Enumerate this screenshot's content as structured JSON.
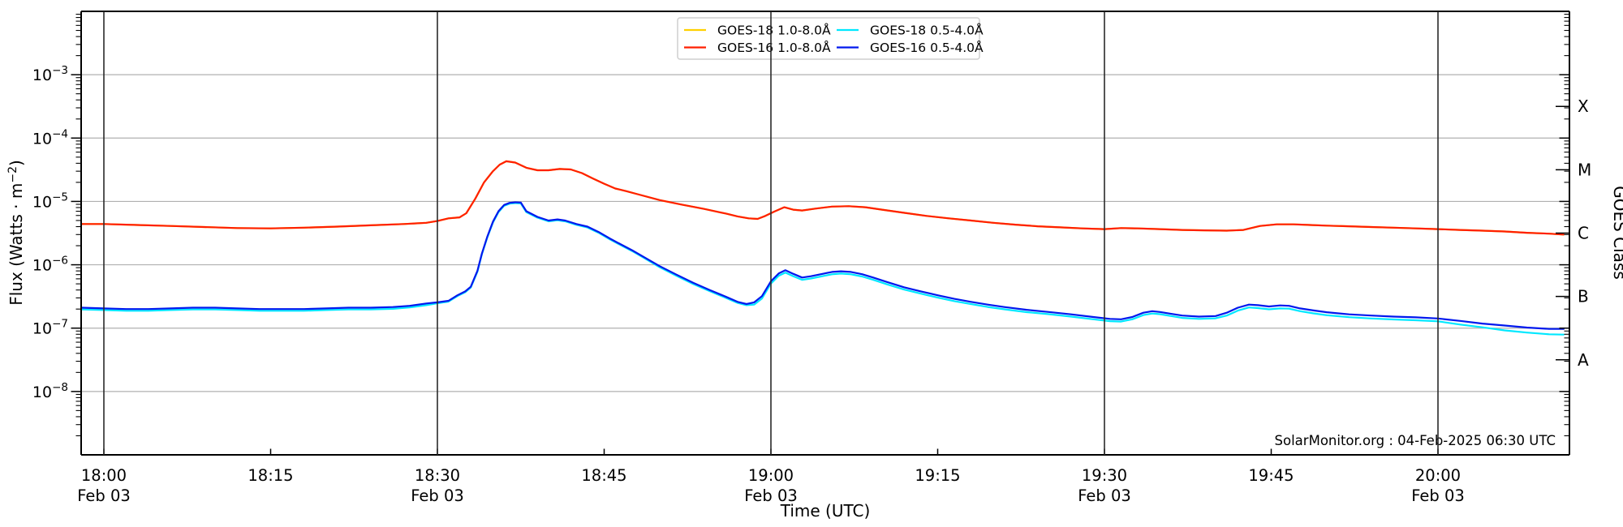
{
  "figure": {
    "annotation": "SolarMonitor.org : 04-Feb-2025 06:30 UTC",
    "xlabel": "Time (UTC)",
    "ylabel_prefix": "Flux (Watts · m",
    "ylabel_sup": "−2",
    "ylabel_suffix": ")",
    "right_axis_label": "GOES Class",
    "colors": {
      "background": "#ffffff",
      "grid_horizontal": "#b0b0b0",
      "grid_vertical": "#2a2a2a",
      "spine": "#000000",
      "legend_border": "#cfcfcf"
    }
  },
  "chart_data": {
    "type": "line",
    "x_unit": "minutes after 18:00 UTC, Feb 03",
    "xlim_minutes": [
      -2.05,
      131.8
    ],
    "ylim": [
      1e-09,
      0.01
    ],
    "y_scale": "log",
    "grid": {
      "horizontal_decades": true,
      "vertical_every_30min": true
    },
    "legend_position": "upper center",
    "y_tick_exponents": [
      -3,
      -4,
      -5,
      -6,
      -7,
      -8
    ],
    "x_ticks": [
      {
        "minutes": 0,
        "label": "18:00",
        "date_label": "Feb 03",
        "vline": true
      },
      {
        "minutes": 15,
        "label": "18:15",
        "vline": false
      },
      {
        "minutes": 30,
        "label": "18:30",
        "date_label": "Feb 03",
        "vline": true
      },
      {
        "minutes": 45,
        "label": "18:45",
        "vline": false
      },
      {
        "minutes": 60,
        "label": "19:00",
        "date_label": "Feb 03",
        "vline": true
      },
      {
        "minutes": 75,
        "label": "19:15",
        "vline": false
      },
      {
        "minutes": 90,
        "label": "19:30",
        "date_label": "Feb 03",
        "vline": true
      },
      {
        "minutes": 105,
        "label": "19:45",
        "vline": false
      },
      {
        "minutes": 120,
        "label": "20:00",
        "date_label": "Feb 03",
        "vline": true
      }
    ],
    "goes_classes": [
      {
        "label": "X",
        "log_flux": -3.5
      },
      {
        "label": "M",
        "log_flux": -4.5
      },
      {
        "label": "C",
        "log_flux": -5.5
      },
      {
        "label": "B",
        "log_flux": -6.5
      },
      {
        "label": "A",
        "log_flux": -7.5
      }
    ],
    "series": [
      {
        "name": "GOES-18 1.0-8.0Å",
        "id": "goes-18-long",
        "color": "#ffd000",
        "t": [
          -2,
          0,
          3,
          6,
          9,
          12,
          15,
          18,
          21,
          24,
          27,
          29,
          30,
          31,
          32,
          32.6,
          33.4,
          34.2,
          35,
          35.6,
          36.2,
          37,
          38,
          39,
          40,
          41,
          42,
          43,
          44,
          45,
          46,
          47,
          48,
          50,
          52,
          54,
          56,
          57,
          58,
          58.8,
          59.5,
          60.3,
          61.2,
          62,
          62.8,
          64,
          65.5,
          67,
          68.5,
          70,
          72,
          74,
          76,
          78,
          80,
          82,
          84,
          86,
          88,
          90,
          91.5,
          93,
          95,
          97,
          99,
          101,
          102.5,
          104,
          105.5,
          107,
          108.5,
          110,
          112,
          114,
          116,
          118,
          120,
          122,
          124,
          126,
          128,
          130,
          131.3
        ],
        "flux": [
          4.4e-06,
          4.4e-06,
          4.25e-06,
          4.1e-06,
          3.95e-06,
          3.8e-06,
          3.75e-06,
          3.85e-06,
          4e-06,
          4.2e-06,
          4.4e-06,
          4.6e-06,
          4.9e-06,
          5.4e-06,
          5.6e-06,
          6.5e-06,
          1.1e-05,
          2e-05,
          3e-05,
          3.8e-05,
          4.3e-05,
          4.1e-05,
          3.4e-05,
          3.1e-05,
          3.1e-05,
          3.25e-05,
          3.2e-05,
          2.8e-05,
          2.3e-05,
          1.9e-05,
          1.6e-05,
          1.45e-05,
          1.3e-05,
          1.05e-05,
          8.9e-06,
          7.6e-06,
          6.4e-06,
          5.8e-06,
          5.4e-06,
          5.3e-06,
          5.9e-06,
          6.9e-06,
          8.1e-06,
          7.4e-06,
          7.2e-06,
          7.7e-06,
          8.3e-06,
          8.4e-06,
          8.1e-06,
          7.4e-06,
          6.6e-06,
          5.9e-06,
          5.4e-06,
          5e-06,
          4.6e-06,
          4.3e-06,
          4.05e-06,
          3.9e-06,
          3.75e-06,
          3.65e-06,
          3.8e-06,
          3.75e-06,
          3.65e-06,
          3.55e-06,
          3.5e-06,
          3.45e-06,
          3.55e-06,
          4.1e-06,
          4.35e-06,
          4.35e-06,
          4.25e-06,
          4.15e-06,
          4.05e-06,
          3.95e-06,
          3.85e-06,
          3.75e-06,
          3.65e-06,
          3.55e-06,
          3.45e-06,
          3.35e-06,
          3.2e-06,
          3.1e-06,
          3e-06
        ]
      },
      {
        "name": "GOES-16 1.0-8.0Å",
        "id": "goes-16-long",
        "color": "#ff1f00",
        "t": [
          -2,
          0,
          3,
          6,
          9,
          12,
          15,
          18,
          21,
          24,
          27,
          29,
          30,
          31,
          32,
          32.6,
          33.4,
          34.2,
          35,
          35.6,
          36.2,
          37,
          38,
          39,
          40,
          41,
          42,
          43,
          44,
          45,
          46,
          47,
          48,
          50,
          52,
          54,
          56,
          57,
          58,
          58.8,
          59.5,
          60.3,
          61.2,
          62,
          62.8,
          64,
          65.5,
          67,
          68.5,
          70,
          72,
          74,
          76,
          78,
          80,
          82,
          84,
          86,
          88,
          90,
          91.5,
          93,
          95,
          97,
          99,
          101,
          102.5,
          104,
          105.5,
          107,
          108.5,
          110,
          112,
          114,
          116,
          118,
          120,
          122,
          124,
          126,
          128,
          130,
          131.3
        ],
        "flux": [
          4.4e-06,
          4.4e-06,
          4.25e-06,
          4.1e-06,
          3.95e-06,
          3.8e-06,
          3.75e-06,
          3.85e-06,
          4e-06,
          4.2e-06,
          4.4e-06,
          4.6e-06,
          4.9e-06,
          5.4e-06,
          5.6e-06,
          6.5e-06,
          1.1e-05,
          2e-05,
          3e-05,
          3.8e-05,
          4.3e-05,
          4.1e-05,
          3.4e-05,
          3.1e-05,
          3.1e-05,
          3.25e-05,
          3.2e-05,
          2.8e-05,
          2.3e-05,
          1.9e-05,
          1.6e-05,
          1.45e-05,
          1.3e-05,
          1.05e-05,
          8.9e-06,
          7.6e-06,
          6.4e-06,
          5.8e-06,
          5.4e-06,
          5.3e-06,
          5.9e-06,
          6.9e-06,
          8.1e-06,
          7.4e-06,
          7.2e-06,
          7.7e-06,
          8.3e-06,
          8.4e-06,
          8.1e-06,
          7.4e-06,
          6.6e-06,
          5.9e-06,
          5.4e-06,
          5e-06,
          4.6e-06,
          4.3e-06,
          4.05e-06,
          3.9e-06,
          3.75e-06,
          3.65e-06,
          3.8e-06,
          3.75e-06,
          3.65e-06,
          3.55e-06,
          3.5e-06,
          3.45e-06,
          3.55e-06,
          4.1e-06,
          4.35e-06,
          4.35e-06,
          4.25e-06,
          4.15e-06,
          4.05e-06,
          3.95e-06,
          3.85e-06,
          3.75e-06,
          3.65e-06,
          3.55e-06,
          3.45e-06,
          3.35e-06,
          3.2e-06,
          3.1e-06,
          3e-06
        ]
      },
      {
        "name": "GOES-18 0.5-4.0Å",
        "id": "goes-18-short",
        "color": "#00e8ff",
        "t": [
          -2,
          0,
          2,
          4,
          6,
          8,
          10,
          12,
          14,
          16,
          18,
          20,
          22,
          24,
          26,
          27.5,
          29,
          30,
          31,
          31.8,
          32.5,
          33,
          33.6,
          34,
          34.5,
          35,
          35.5,
          36,
          36.5,
          37,
          37.5,
          38,
          39,
          40,
          40.8,
          41.5,
          42.5,
          43.5,
          44.5,
          45.5,
          46.5,
          47.5,
          48.5,
          50,
          51.5,
          53,
          54.5,
          56,
          57,
          57.8,
          58.5,
          59.2,
          60,
          60.7,
          61.3,
          62,
          62.8,
          63.6,
          64.5,
          65.5,
          66.3,
          67.2,
          68.2,
          69.2,
          70.5,
          72,
          73.5,
          75,
          76.5,
          78,
          79.5,
          81,
          83,
          85,
          87,
          89,
          90.5,
          91.5,
          92.5,
          93.5,
          94.3,
          95,
          96,
          97,
          98.5,
          100,
          101,
          102,
          103,
          103.8,
          104.8,
          105.8,
          106.6,
          107.6,
          108.8,
          110,
          112,
          114,
          116,
          118,
          120,
          122,
          124,
          126,
          128,
          130,
          131.3
        ],
        "flux": [
          1.97e-07,
          1.93e-07,
          1.88e-07,
          1.88e-07,
          1.93e-07,
          1.97e-07,
          1.97e-07,
          1.93e-07,
          1.88e-07,
          1.88e-07,
          1.88e-07,
          1.93e-07,
          1.97e-07,
          1.97e-07,
          2.02e-07,
          2.12e-07,
          2.3e-07,
          2.47e-07,
          2.62e-07,
          3.2e-07,
          3.69e-07,
          4.37e-07,
          7.76e-07,
          1.46e-06,
          2.72e-06,
          4.66e-06,
          6.79e-06,
          8.54e-06,
          9.22e-06,
          9.41e-06,
          9.31e-06,
          6.79e-06,
          5.53e-06,
          4.85e-06,
          5.04e-06,
          4.85e-06,
          4.27e-06,
          3.88e-06,
          3.2e-06,
          2.52e-06,
          2.04e-06,
          1.65e-06,
          1.31e-06,
          9.12e-07,
          6.72e-07,
          4.99e-07,
          3.84e-07,
          2.98e-07,
          2.5e-07,
          2.3e-07,
          2.35e-07,
          2.94e-07,
          5.06e-07,
          6.72e-07,
          7.54e-07,
          6.62e-07,
          5.8e-07,
          6.07e-07,
          6.53e-07,
          7.08e-07,
          7.27e-07,
          7.08e-07,
          6.53e-07,
          5.8e-07,
          4.88e-07,
          4.05e-07,
          3.5e-07,
          3.04e-07,
          2.67e-07,
          2.39e-07,
          2.16e-07,
          1.98e-07,
          1.79e-07,
          1.66e-07,
          1.52e-07,
          1.38e-07,
          1.29e-07,
          1.27e-07,
          1.38e-07,
          1.61e-07,
          1.7e-07,
          1.66e-07,
          1.55e-07,
          1.45e-07,
          1.4e-07,
          1.43e-07,
          1.58e-07,
          1.89e-07,
          2.12e-07,
          2.07e-07,
          1.98e-07,
          2.05e-07,
          2.03e-07,
          1.85e-07,
          1.71e-07,
          1.6e-07,
          1.49e-07,
          1.42e-07,
          1.37e-07,
          1.33e-07,
          1.28e-07,
          1.14e-07,
          1.03e-07,
          9.2e-08,
          8.5e-08,
          8e-08,
          7.9e-08
        ]
      },
      {
        "name": "GOES-16 0.5-4.0Å",
        "id": "goes-16-short",
        "color": "#0018ee",
        "t": [
          -2,
          0,
          2,
          4,
          6,
          8,
          10,
          12,
          14,
          16,
          18,
          20,
          22,
          24,
          26,
          27.5,
          29,
          30,
          31,
          31.8,
          32.5,
          33,
          33.6,
          34,
          34.5,
          35,
          35.5,
          36,
          36.5,
          37,
          37.5,
          38,
          39,
          40,
          40.8,
          41.5,
          42.5,
          43.5,
          44.5,
          45.5,
          46.5,
          47.5,
          48.5,
          50,
          51.5,
          53,
          54.5,
          56,
          57,
          57.8,
          58.5,
          59.2,
          60,
          60.7,
          61.3,
          62,
          62.8,
          63.6,
          64.5,
          65.5,
          66.3,
          67.2,
          68.2,
          69.2,
          70.5,
          72,
          73.5,
          75,
          76.5,
          78,
          79.5,
          81,
          83,
          85,
          87,
          89,
          90.5,
          91.5,
          92.5,
          93.5,
          94.3,
          95,
          96,
          97,
          98.5,
          100,
          101,
          102,
          103,
          103.8,
          104.8,
          105.8,
          106.6,
          107.6,
          108.8,
          110,
          112,
          114,
          116,
          118,
          120,
          122,
          124,
          126,
          128,
          130,
          131.3
        ],
        "flux": [
          2.1e-07,
          2.05e-07,
          2e-07,
          2e-07,
          2.05e-07,
          2.1e-07,
          2.1e-07,
          2.05e-07,
          2e-07,
          2e-07,
          2e-07,
          2.05e-07,
          2.1e-07,
          2.1e-07,
          2.15e-07,
          2.25e-07,
          2.45e-07,
          2.55e-07,
          2.7e-07,
          3.3e-07,
          3.8e-07,
          4.5e-07,
          8e-07,
          1.5e-06,
          2.8e-06,
          4.8e-06,
          7e-06,
          8.8e-06,
          9.5e-06,
          9.7e-06,
          9.6e-06,
          7e-06,
          5.7e-06,
          5e-06,
          5.2e-06,
          5e-06,
          4.4e-06,
          4e-06,
          3.3e-06,
          2.6e-06,
          2.1e-06,
          1.7e-06,
          1.35e-06,
          9.5e-07,
          7e-07,
          5.2e-07,
          4e-07,
          3.1e-07,
          2.6e-07,
          2.4e-07,
          2.55e-07,
          3.2e-07,
          5.5e-07,
          7.3e-07,
          8.2e-07,
          7.2e-07,
          6.3e-07,
          6.6e-07,
          7.1e-07,
          7.7e-07,
          7.9e-07,
          7.7e-07,
          7.1e-07,
          6.3e-07,
          5.3e-07,
          4.4e-07,
          3.8e-07,
          3.3e-07,
          2.9e-07,
          2.6e-07,
          2.35e-07,
          2.15e-07,
          1.95e-07,
          1.8e-07,
          1.65e-07,
          1.5e-07,
          1.4e-07,
          1.38e-07,
          1.5e-07,
          1.75e-07,
          1.85e-07,
          1.8e-07,
          1.68e-07,
          1.58e-07,
          1.52e-07,
          1.55e-07,
          1.75e-07,
          2.1e-07,
          2.35e-07,
          2.3e-07,
          2.2e-07,
          2.28e-07,
          2.25e-07,
          2.05e-07,
          1.9e-07,
          1.78e-07,
          1.65e-07,
          1.58e-07,
          1.52e-07,
          1.48e-07,
          1.42e-07,
          1.3e-07,
          1.18e-07,
          1.1e-07,
          1.02e-07,
          9.7e-08,
          9.7e-08
        ]
      }
    ],
    "legend_columns": [
      [
        0,
        1
      ],
      [
        2,
        3
      ]
    ]
  }
}
